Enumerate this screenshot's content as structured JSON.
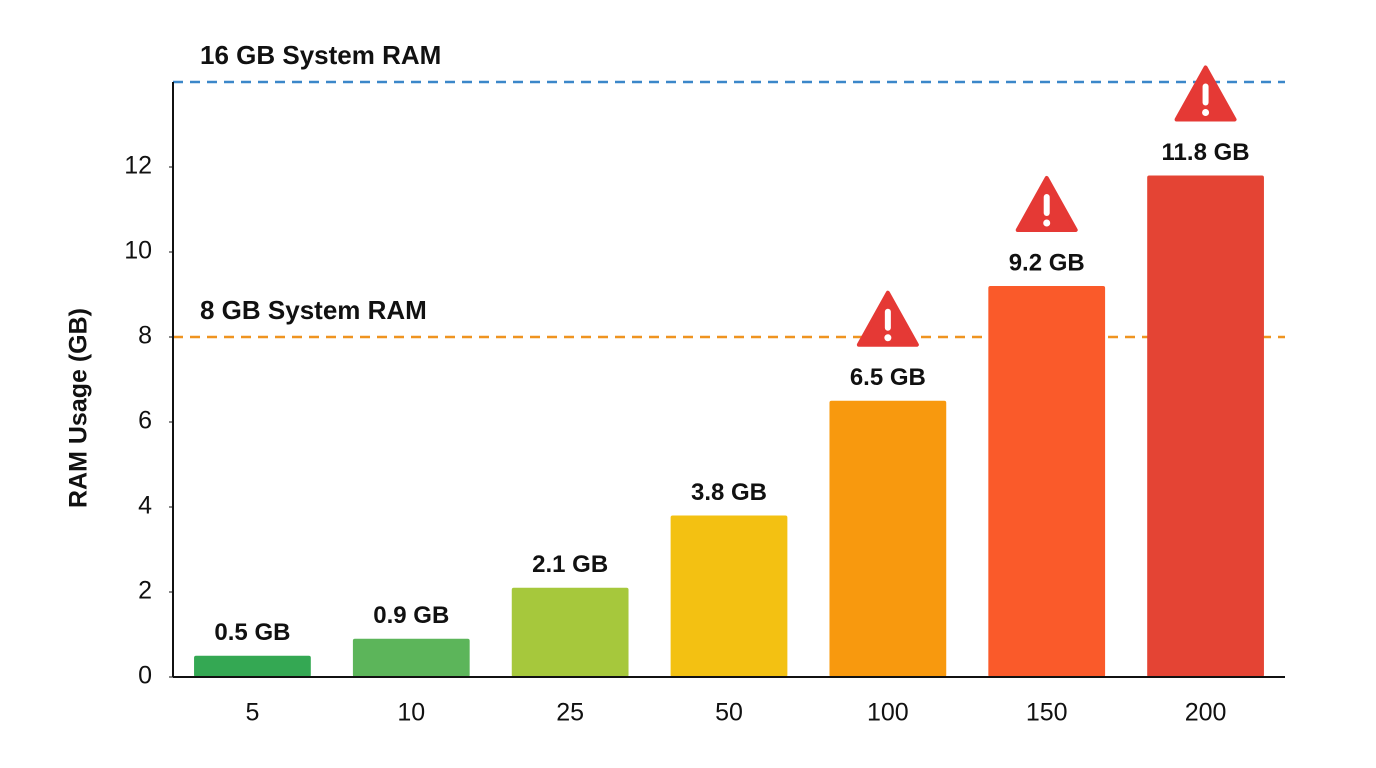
{
  "chart_data": {
    "type": "bar",
    "y_label": "RAM Usage (GB)",
    "categories": [
      "5",
      "10",
      "25",
      "50",
      "100",
      "150",
      "200"
    ],
    "values": [
      0.5,
      0.9,
      2.1,
      3.8,
      6.5,
      9.2,
      11.8
    ],
    "value_labels": [
      "0.5 GB",
      "0.9 GB",
      "2.1 GB",
      "3.8 GB",
      "6.5 GB",
      "9.2 GB",
      "11.8 GB"
    ],
    "colors": [
      "#34a853",
      "#5cb55a",
      "#a6c83c",
      "#f3c112",
      "#f8990e",
      "#fa5a2a",
      "#e44434"
    ],
    "warnings": [
      false,
      false,
      false,
      false,
      true,
      true,
      true
    ],
    "ylim": [
      0,
      14
    ],
    "yticks": [
      0,
      2,
      4,
      6,
      8,
      10,
      12
    ],
    "reference_lines": [
      {
        "label": "8 GB System RAM",
        "value": 8,
        "color": "#ef9420"
      },
      {
        "label": "16 GB System RAM",
        "color": "#3b87c9"
      }
    ]
  }
}
